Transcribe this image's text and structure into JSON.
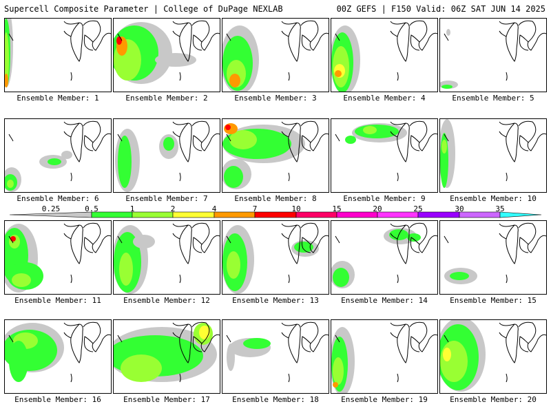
{
  "header": {
    "title_left": "Supercell Composite Parameter | College of DuPage NEXLAB",
    "title_right": "00Z GEFS | F150 Valid: 06Z SAT JUN 14 2025"
  },
  "legend": {
    "tick_labels": [
      "0.25",
      "0.5",
      "1",
      "2",
      "4",
      "7",
      "10",
      "15",
      "20",
      "25",
      "30",
      "35"
    ],
    "colors": [
      "#c8c8c8",
      "#33ff33",
      "#99ff33",
      "#ffff33",
      "#ff9900",
      "#ff0000",
      "#ff0066",
      "#ff00cc",
      "#ff33ff",
      "#9900ff",
      "#cc66ff",
      "#33ffff"
    ]
  },
  "members": [
    {
      "label": "Ensemble Member: 1"
    },
    {
      "label": "Ensemble Member: 2"
    },
    {
      "label": "Ensemble Member: 3"
    },
    {
      "label": "Ensemble Member: 4"
    },
    {
      "label": "Ensemble Member: 5"
    },
    {
      "label": "Ensemble Member: 6"
    },
    {
      "label": "Ensemble Member: 7"
    },
    {
      "label": "Ensemble Member: 8"
    },
    {
      "label": "Ensemble Member: 9"
    },
    {
      "label": "Ensemble Member: 10"
    },
    {
      "label": "Ensemble Member: 11"
    },
    {
      "label": "Ensemble Member: 12"
    },
    {
      "label": "Ensemble Member: 13"
    },
    {
      "label": "Ensemble Member: 14"
    },
    {
      "label": "Ensemble Member: 15"
    },
    {
      "label": "Ensemble Member: 16"
    },
    {
      "label": "Ensemble Member: 17"
    },
    {
      "label": "Ensemble Member: 18"
    },
    {
      "label": "Ensemble Member: 19"
    },
    {
      "label": "Ensemble Member: 20"
    }
  ]
}
